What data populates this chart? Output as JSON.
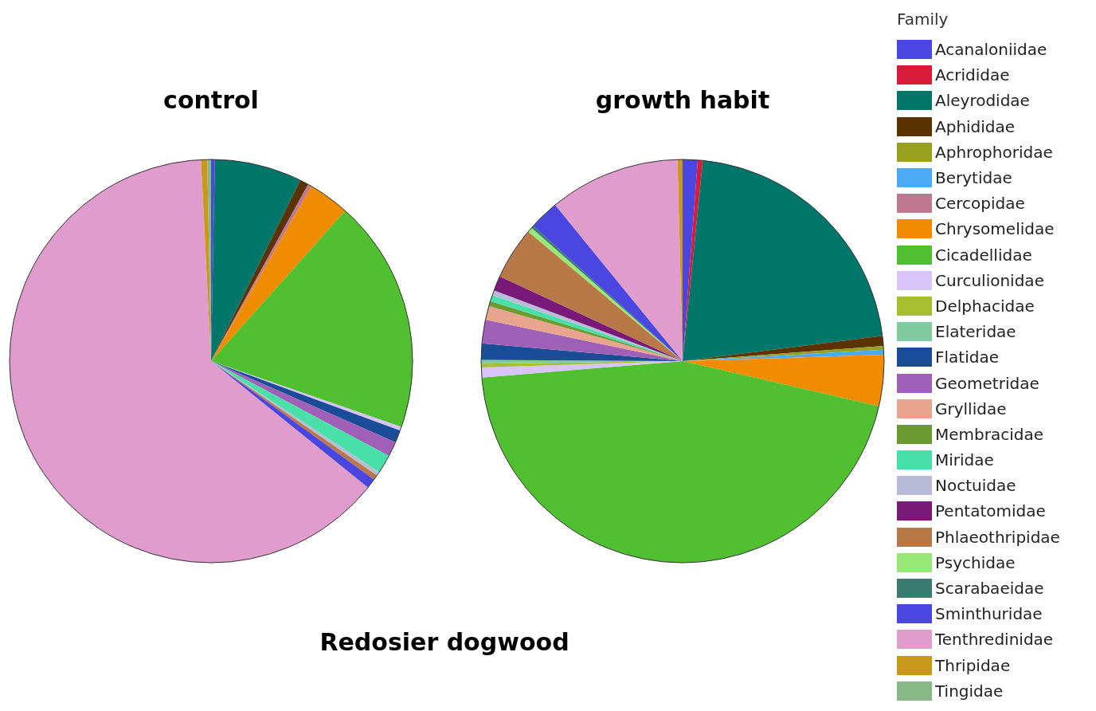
{
  "chart_data": {
    "type": "pie",
    "title": "Redosier dogwood",
    "legend": "right",
    "legend_title": "Family",
    "categories": [
      "Acanaloniidae",
      "Acrididae",
      "Aleyrodidae",
      "Aphididae",
      "Aphrophoridae",
      "Berytidae",
      "Cercopidae",
      "Chrysomelidae",
      "Cicadellidae",
      "Curculionidae",
      "Delphacidae",
      "Elateridae",
      "Flatidae",
      "Geometridae",
      "Gryllidae",
      "Membracidae",
      "Miridae",
      "Noctuidae",
      "Pentatomidae",
      "Phlaeothripidae",
      "Psychidae",
      "Scarabaeidae",
      "Sminthuridae",
      "Tenthredinidae",
      "Thripidae",
      "Tingidae"
    ],
    "colors": [
      "#4a46e0",
      "#d81b3a",
      "#00766a",
      "#5c3300",
      "#98a020",
      "#4aaaf8",
      "#c07890",
      "#f08c00",
      "#50c030",
      "#d8c4f8",
      "#a8c030",
      "#80cca0",
      "#1a4c98",
      "#a060b8",
      "#e8a48c",
      "#6a9a30",
      "#48e0a8",
      "#b8bcd8",
      "#7a1a78",
      "#b87848",
      "#98e878",
      "#3a7a70",
      "#4a46e0",
      "#e09ccc",
      "#c89818",
      "#88b888"
    ],
    "series": [
      {
        "name": "control",
        "values": [
          0.3,
          0,
          7,
          0.7,
          0,
          0,
          0.3,
          3.3,
          18.7,
          0.3,
          0,
          0,
          1,
          1.2,
          0,
          0,
          1.5,
          0.3,
          0,
          0.4,
          0,
          0,
          0.8,
          63.4,
          0.5,
          0.3
        ]
      },
      {
        "name": "growth habit",
        "values": [
          1.2,
          0.4,
          21.4,
          0.8,
          0.3,
          0.4,
          0,
          4.1,
          45.1,
          0.8,
          0.3,
          0.3,
          1.3,
          1.9,
          1.1,
          0.4,
          0.5,
          0.4,
          1.2,
          4.2,
          0.4,
          0.2,
          2.4,
          10.5,
          0.4,
          0
        ]
      }
    ]
  }
}
